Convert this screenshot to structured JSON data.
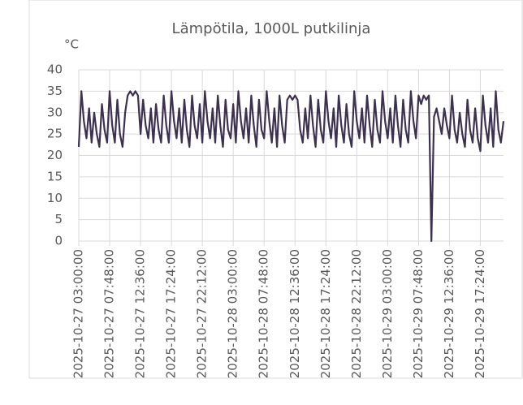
{
  "chart_data": {
    "type": "line",
    "title": "Lämpötila, 1000L putkilinja",
    "y_unit": "°C",
    "color": "#3d3150",
    "categories": [
      "2025-10-27 03:00:00",
      null,
      null,
      null,
      null,
      null,
      null,
      null,
      null,
      null,
      null,
      null,
      "2025-10-27 07:48:00",
      null,
      null,
      null,
      null,
      null,
      null,
      null,
      null,
      null,
      null,
      null,
      "2025-10-27 12:36:00",
      null,
      null,
      null,
      null,
      null,
      null,
      null,
      null,
      null,
      null,
      null,
      "2025-10-27 17:24:00",
      null,
      null,
      null,
      null,
      null,
      null,
      null,
      null,
      null,
      null,
      null,
      "2025-10-27 22:12:00",
      null,
      null,
      null,
      null,
      null,
      null,
      null,
      null,
      null,
      null,
      null,
      "2025-10-28 03:00:00",
      null,
      null,
      null,
      null,
      null,
      null,
      null,
      null,
      null,
      null,
      null,
      "2025-10-28 07:48:00",
      null,
      null,
      null,
      null,
      null,
      null,
      null,
      null,
      null,
      null,
      null,
      "2025-10-28 12:36:00",
      null,
      null,
      null,
      null,
      null,
      null,
      null,
      null,
      null,
      null,
      null,
      "2025-10-28 17:24:00",
      null,
      null,
      null,
      null,
      null,
      null,
      null,
      null,
      null,
      null,
      null,
      "2025-10-28 22:12:00",
      null,
      null,
      null,
      null,
      null,
      null,
      null,
      null,
      null,
      null,
      null,
      "2025-10-29 03:00:00",
      null,
      null,
      null,
      null,
      null,
      null,
      null,
      null,
      null,
      null,
      null,
      "2025-10-29 07:48:00",
      null,
      null,
      null,
      null,
      null,
      null,
      null,
      null,
      null,
      null,
      null,
      "2025-10-29 12:36:00",
      null,
      null,
      null,
      null,
      null,
      null,
      null,
      null,
      null,
      null,
      null,
      "2025-10-29 17:24:00",
      null,
      null,
      null,
      null,
      null,
      null,
      null,
      null,
      null
    ],
    "values": [
      22,
      35,
      28,
      24,
      31,
      23,
      30,
      25,
      22,
      32,
      26,
      23,
      35,
      27,
      23,
      33,
      25,
      22,
      30,
      34,
      35,
      34,
      35,
      34,
      25,
      33,
      27,
      24,
      31,
      23,
      32,
      26,
      23,
      34,
      27,
      23,
      35,
      28,
      24,
      31,
      23,
      33,
      26,
      22,
      34,
      27,
      24,
      32,
      23,
      35,
      28,
      24,
      31,
      23,
      34,
      27,
      22,
      33,
      26,
      24,
      32,
      23,
      35,
      28,
      24,
      31,
      23,
      34,
      27,
      22,
      33,
      26,
      24,
      35,
      28,
      23,
      31,
      22,
      34,
      27,
      23,
      33,
      34,
      33,
      34,
      33,
      26,
      23,
      31,
      24,
      34,
      27,
      22,
      33,
      26,
      23,
      35,
      28,
      24,
      31,
      22,
      34,
      27,
      23,
      32,
      25,
      22,
      35,
      28,
      24,
      31,
      23,
      34,
      27,
      22,
      33,
      26,
      23,
      35,
      28,
      24,
      31,
      23,
      34,
      27,
      22,
      33,
      26,
      23,
      35,
      28,
      24,
      34,
      32,
      34,
      33,
      34,
      0,
      29,
      31,
      28,
      25,
      31,
      27,
      24,
      34,
      26,
      23,
      30,
      25,
      22,
      33,
      26,
      23,
      31,
      24,
      21,
      34,
      27,
      23,
      31,
      22,
      35,
      26,
      23,
      28
    ],
    "ylim": [
      0,
      40
    ],
    "yticks": [
      0,
      5,
      10,
      15,
      20,
      25,
      30,
      35,
      40
    ],
    "grid": true
  }
}
